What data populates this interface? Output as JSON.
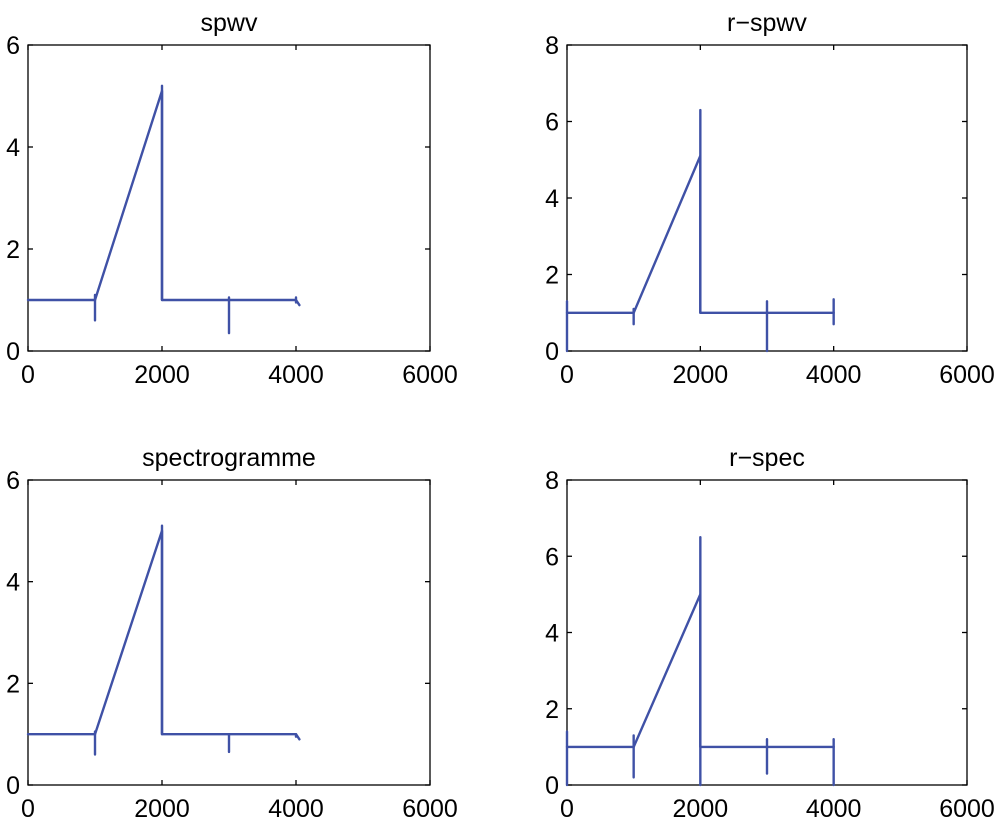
{
  "chart_data": [
    {
      "type": "line",
      "title": "spwv",
      "xlabel": "",
      "ylabel": "",
      "xlim": [
        0,
        6000
      ],
      "ylim": [
        0,
        6
      ],
      "xticks": [
        0,
        2000,
        4000,
        6000
      ],
      "yticks": [
        0,
        2,
        4,
        6
      ],
      "series": [
        {
          "color": "#3f51a6",
          "x": [
            0,
            1000,
            2000,
            2000,
            4000,
            4050
          ],
          "y": [
            1.0,
            1.0,
            5.1,
            1.0,
            1.0,
            0.9
          ]
        }
      ],
      "spikes": [
        {
          "x": 1000,
          "y0": 0.6,
          "y1": 1.1
        },
        {
          "x": 2000,
          "y0": 1.0,
          "y1": 5.2
        },
        {
          "x": 3000,
          "y0": 0.35,
          "y1": 1.05
        },
        {
          "x": 4000,
          "y0": 0.95,
          "y1": 1.05
        }
      ]
    },
    {
      "type": "line",
      "title": "r−spwv",
      "xlabel": "",
      "ylabel": "",
      "xlim": [
        0,
        6000
      ],
      "ylim": [
        0,
        8
      ],
      "xticks": [
        0,
        2000,
        4000,
        6000
      ],
      "yticks": [
        0,
        2,
        4,
        6,
        8
      ],
      "series": [
        {
          "color": "#3f51a6",
          "x": [
            0,
            1000,
            2000,
            2000,
            4000
          ],
          "y": [
            1.0,
            1.0,
            5.1,
            1.0,
            1.0
          ]
        }
      ],
      "spikes": [
        {
          "x": 0,
          "y0": 0.0,
          "y1": 1.3
        },
        {
          "x": 1000,
          "y0": 0.7,
          "y1": 1.1
        },
        {
          "x": 2000,
          "y0": 1.0,
          "y1": 6.3
        },
        {
          "x": 3000,
          "y0": 0.0,
          "y1": 1.3
        },
        {
          "x": 4000,
          "y0": 0.7,
          "y1": 1.35
        }
      ]
    },
    {
      "type": "line",
      "title": "spectrogramme",
      "xlabel": "",
      "ylabel": "",
      "xlim": [
        0,
        6000
      ],
      "ylim": [
        0,
        6
      ],
      "xticks": [
        0,
        2000,
        4000,
        6000
      ],
      "yticks": [
        0,
        2,
        4,
        6
      ],
      "series": [
        {
          "color": "#3f51a6",
          "x": [
            0,
            1000,
            2000,
            2000,
            4000,
            4050
          ],
          "y": [
            1.0,
            1.0,
            5.0,
            1.0,
            1.0,
            0.9
          ]
        }
      ],
      "spikes": [
        {
          "x": 1000,
          "y0": 0.6,
          "y1": 1.05
        },
        {
          "x": 2000,
          "y0": 1.0,
          "y1": 5.1
        },
        {
          "x": 3000,
          "y0": 0.65,
          "y1": 1.0
        },
        {
          "x": 4000,
          "y0": 0.95,
          "y1": 1.0
        }
      ]
    },
    {
      "type": "line",
      "title": "r−spec",
      "xlabel": "",
      "ylabel": "",
      "xlim": [
        0,
        6000
      ],
      "ylim": [
        0,
        8
      ],
      "xticks": [
        0,
        2000,
        4000,
        6000
      ],
      "yticks": [
        0,
        2,
        4,
        6,
        8
      ],
      "series": [
        {
          "color": "#3f51a6",
          "x": [
            0,
            1000,
            2000,
            2000,
            4000
          ],
          "y": [
            1.0,
            1.0,
            5.0,
            1.0,
            1.0
          ]
        }
      ],
      "spikes": [
        {
          "x": 0,
          "y0": 0.0,
          "y1": 1.4
        },
        {
          "x": 1000,
          "y0": 0.2,
          "y1": 1.3
        },
        {
          "x": 2000,
          "y0": 0.0,
          "y1": 6.5
        },
        {
          "x": 3000,
          "y0": 0.3,
          "y1": 1.2
        },
        {
          "x": 4000,
          "y0": 0.0,
          "y1": 1.2
        }
      ]
    }
  ]
}
